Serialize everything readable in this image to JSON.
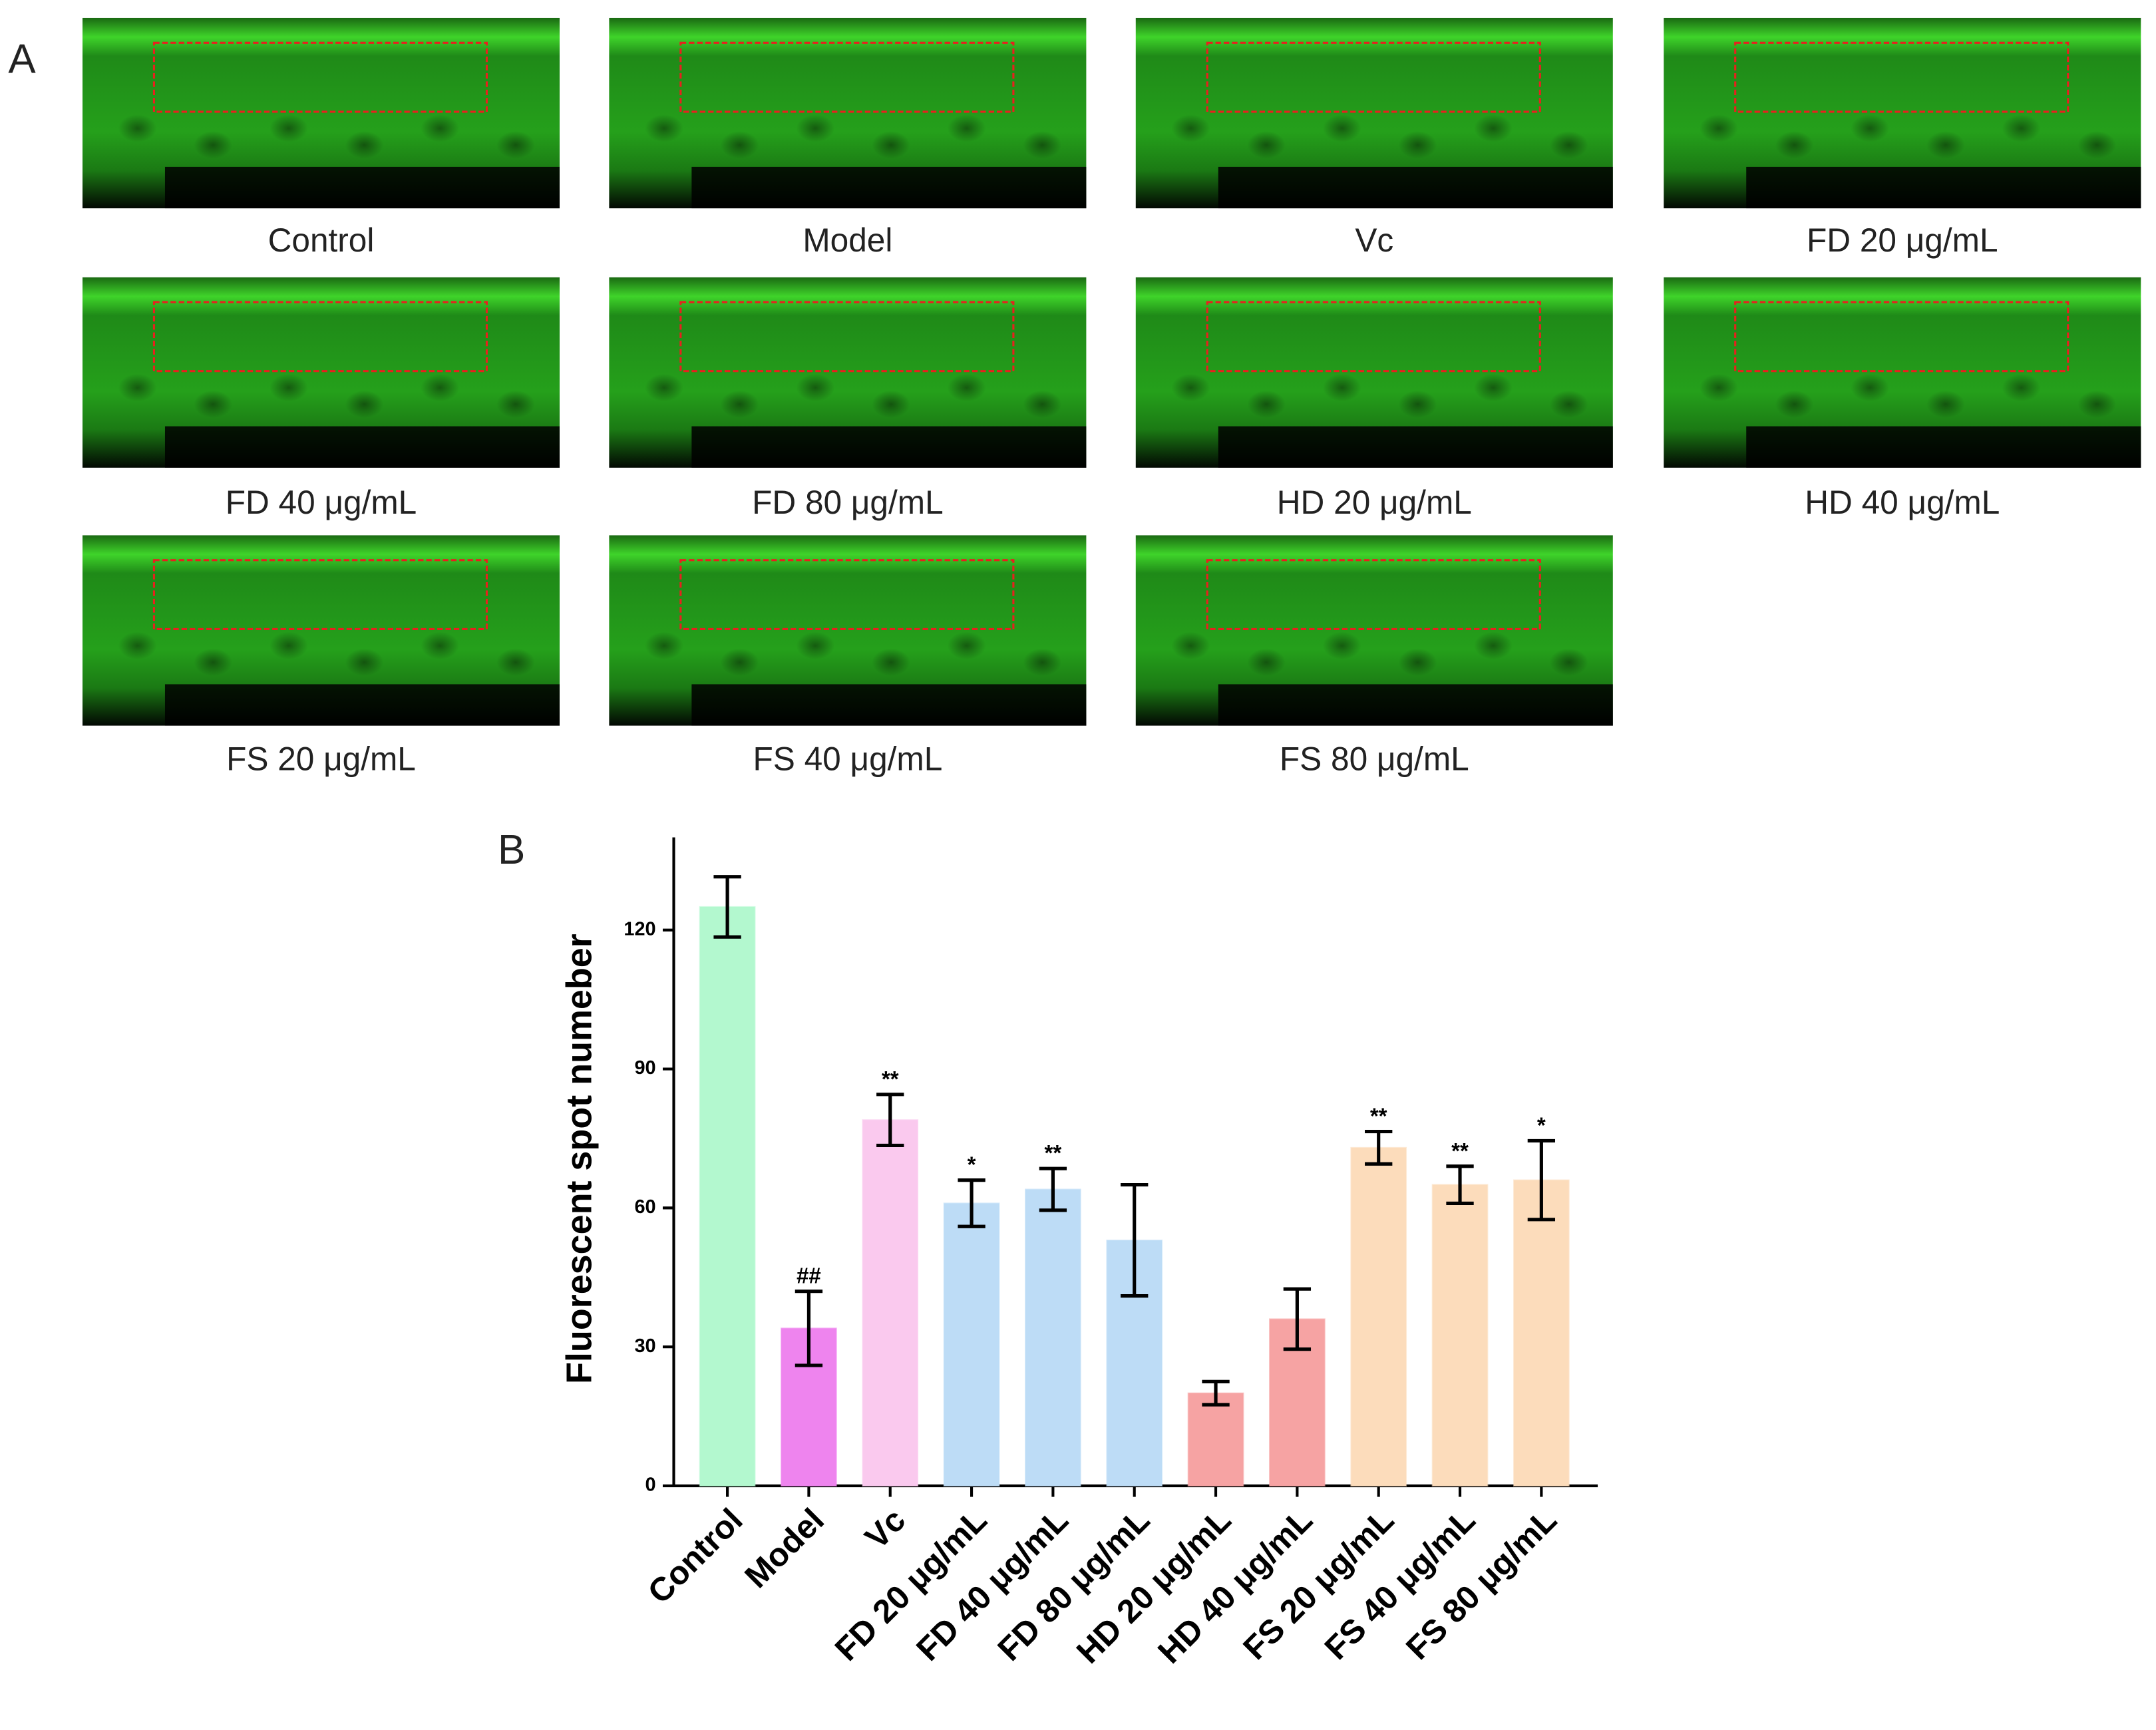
{
  "panel_a": {
    "label": "A",
    "captions": [
      "Control",
      "Model",
      "Vc",
      "FD 20 μg/mL",
      "FD 40 μg/mL",
      "FD 80 μg/mL",
      "HD 20 μg/mL",
      "HD 40 μg/mL",
      "FS 20 μg/mL",
      "FS 40 μg/mL",
      "FS 80 μg/mL"
    ]
  },
  "panel_b": {
    "label": "B"
  },
  "chart_data": {
    "type": "bar",
    "y_label": "Fluorescent spot numeber",
    "categories": [
      "Control",
      "Model",
      "Vc",
      "FD 20 μg/mL",
      "FD 40 μg/mL",
      "FD 80 μg/mL",
      "HD 20 μg/mL",
      "HD 40 μg/mL",
      "FS 20 μg/mL",
      "FS 40 μg/mL",
      "FS 80 μg/mL"
    ],
    "values": [
      125,
      34,
      79,
      61,
      64,
      53,
      20,
      36,
      73,
      65,
      66
    ],
    "errors": [
      6.5,
      8,
      5.5,
      5,
      4.5,
      12,
      2.5,
      6.5,
      3.5,
      4,
      8.5
    ],
    "annotations": [
      null,
      "##",
      "**",
      "*",
      "**",
      null,
      null,
      null,
      "**",
      "**",
      "*"
    ],
    "colors": [
      "#b3f8cf",
      "#ee84ee",
      "#fac9ee",
      "#bddcf6",
      "#bddcf6",
      "#bddcf6",
      "#f6a3a3",
      "#f6a3a3",
      "#fcdcbb",
      "#fcdcbb",
      "#fcdcbb"
    ],
    "ylim": [
      0,
      140
    ],
    "yticks": [
      0,
      30,
      60,
      90,
      120
    ]
  }
}
